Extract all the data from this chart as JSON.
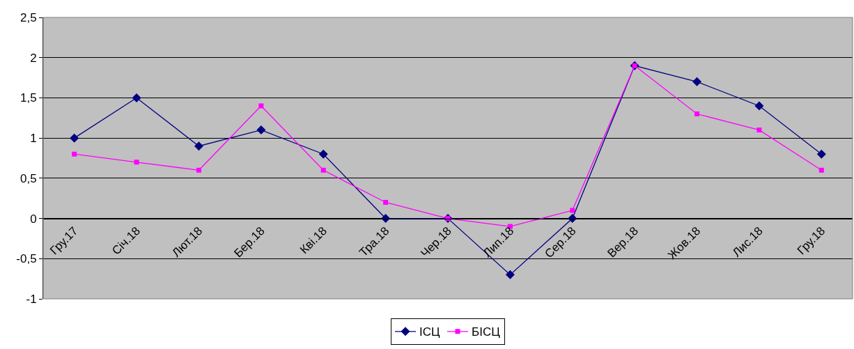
{
  "chart_data": {
    "type": "line",
    "categories": [
      "Гру.17",
      "Січ.18",
      "Лют.18",
      "Бер.18",
      "Кві.18",
      "Тра.18",
      "Чер.18",
      "Лип.18",
      "Сер.18",
      "Вер.18",
      "Жов.18",
      "Лис.18",
      "Гру.18"
    ],
    "series": [
      {
        "name": "ІСЦ",
        "color": "#000080",
        "marker": "diamond",
        "values": [
          1.0,
          1.5,
          0.9,
          1.1,
          0.8,
          0,
          0,
          -0.7,
          0,
          1.9,
          1.7,
          1.4,
          0.8
        ]
      },
      {
        "name": "БІСЦ",
        "color": "#ff00ff",
        "marker": "square",
        "values": [
          0.8,
          0.7,
          0.6,
          1.4,
          0.6,
          0.2,
          0,
          -0.1,
          0.1,
          1.9,
          1.3,
          1.1,
          0.6
        ]
      }
    ],
    "ylim": [
      -1,
      2.5
    ],
    "yticks": [
      -1,
      {
        "value": -0.5,
        "label": "-0,5"
      },
      0,
      {
        "value": 0.5,
        "label": "0,5"
      },
      1,
      {
        "value": 1.5,
        "label": "1,5"
      },
      2,
      {
        "value": 2.5,
        "label": "2,5"
      }
    ],
    "grid": "y",
    "legend": "bottom",
    "line_style": "solid"
  }
}
